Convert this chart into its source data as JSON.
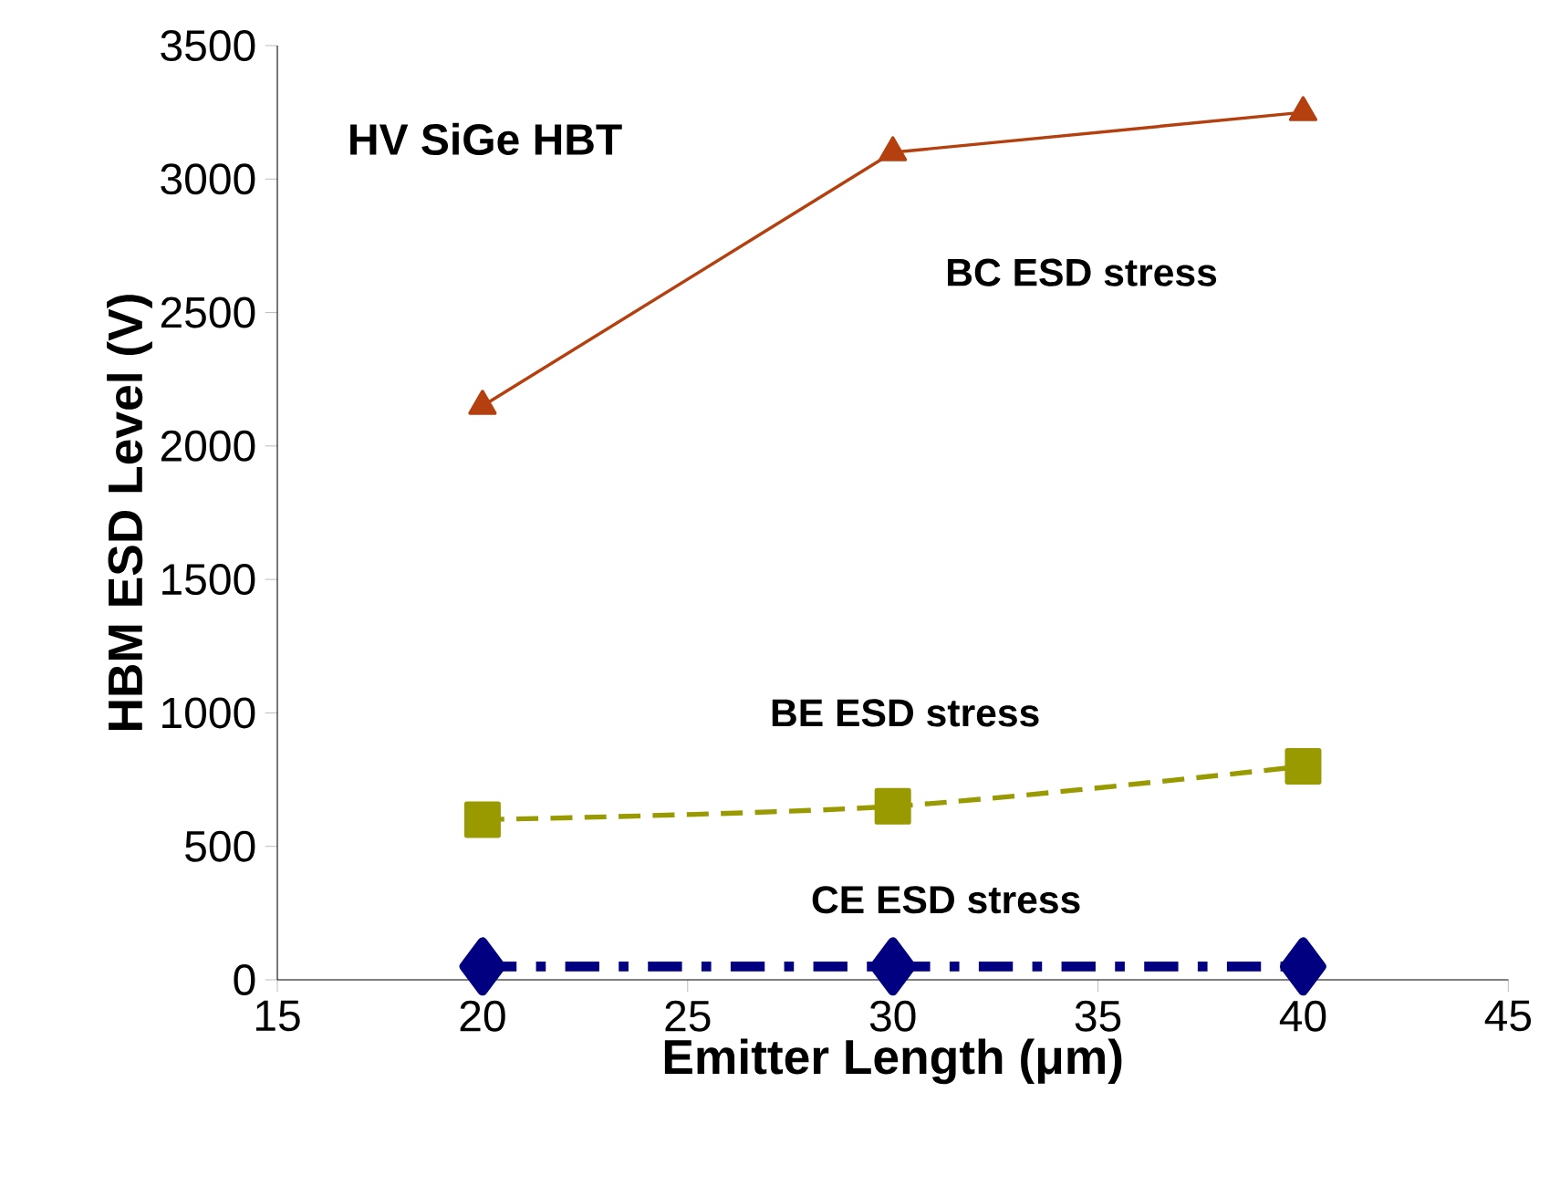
{
  "chart_data": {
    "type": "line",
    "xlabel": "Emitter Length (μm)",
    "ylabel": "HBM ESD Level (V)",
    "annotations": [
      "HV SiGe HBT"
    ],
    "x": [
      20,
      30,
      40
    ],
    "series": [
      {
        "name": "BC ESD stress",
        "color": "#b5400f",
        "values": [
          2150,
          3100,
          3250
        ],
        "marker": "triangle",
        "line_style": "solid"
      },
      {
        "name": "BE ESD stress",
        "color": "#999900",
        "values": [
          600,
          650,
          800
        ],
        "marker": "square",
        "line_style": "dashed"
      },
      {
        "name": "CE ESD stress",
        "color": "#000080",
        "values": [
          50,
          50,
          50
        ],
        "marker": "diamond",
        "line_style": "dashdot"
      }
    ],
    "xlim": [
      15,
      45
    ],
    "xticks": [
      15,
      20,
      25,
      30,
      35,
      40,
      45
    ],
    "ylim": [
      0,
      3500
    ],
    "yticks": [
      0,
      500,
      1000,
      1500,
      2000,
      2500,
      3000,
      3500
    ],
    "grid": false,
    "legend": false
  }
}
